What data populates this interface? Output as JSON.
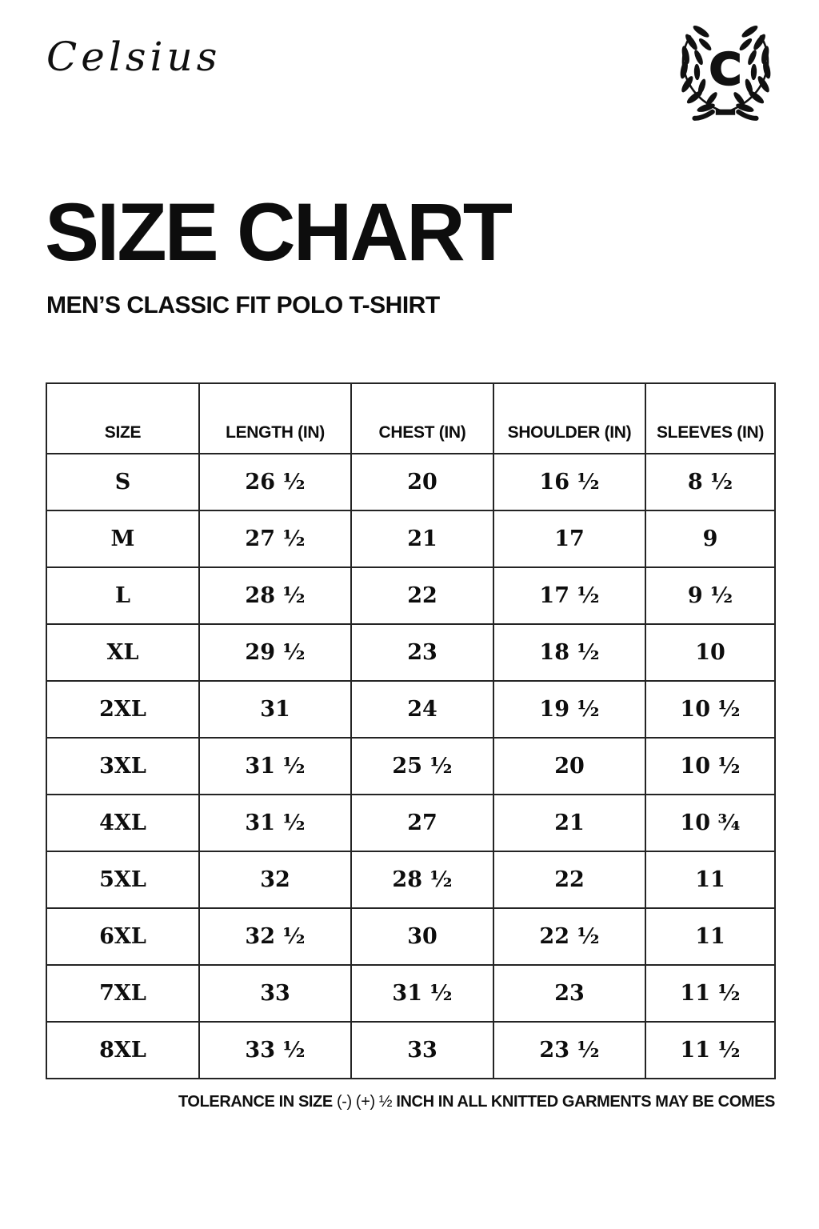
{
  "brand": {
    "wordmark": "Celsius",
    "monogram_letter": "C"
  },
  "page": {
    "title": "SIZE CHART",
    "subtitle": "MEN’S CLASSIC FIT POLO T-SHIRT"
  },
  "table": {
    "columns": [
      "SIZE",
      "LENGTH (IN)",
      "CHEST (IN)",
      "SHOULDER (IN)",
      "SLEEVES (IN)"
    ],
    "rows": [
      [
        "S",
        "26 ½",
        "20",
        "16 ½",
        "8 ½"
      ],
      [
        "M",
        "27 ½",
        "21",
        "17",
        "9"
      ],
      [
        "L",
        "28 ½",
        "22",
        "17 ½",
        "9 ½"
      ],
      [
        "XL",
        "29 ½",
        "23",
        "18 ½",
        "10"
      ],
      [
        "2XL",
        "31",
        "24",
        "19 ½",
        "10 ½"
      ],
      [
        "3XL",
        "31 ½",
        "25 ½",
        "20",
        "10 ½"
      ],
      [
        "4XL",
        "31 ½",
        "27",
        "21",
        "10 ¾"
      ],
      [
        "5XL",
        "32",
        "28 ½",
        "22",
        "11"
      ],
      [
        "6XL",
        "32 ½",
        "30",
        "22 ½",
        "11"
      ],
      [
        "7XL",
        "33",
        "31 ½",
        "23",
        "11 ½"
      ],
      [
        "8XL",
        "33 ½",
        "33",
        "23 ½",
        "11 ½"
      ]
    ]
  },
  "footer": {
    "note_prefix": "TOLERANCE IN SIZE",
    "note_symbols": "(-) (+) ½",
    "note_suffix": "INCH IN ALL KNITTED GARMENTS MAY BE COMES"
  },
  "colors": {
    "text": "#0d0d0d",
    "background": "#ffffff",
    "table_border": "#242424"
  }
}
